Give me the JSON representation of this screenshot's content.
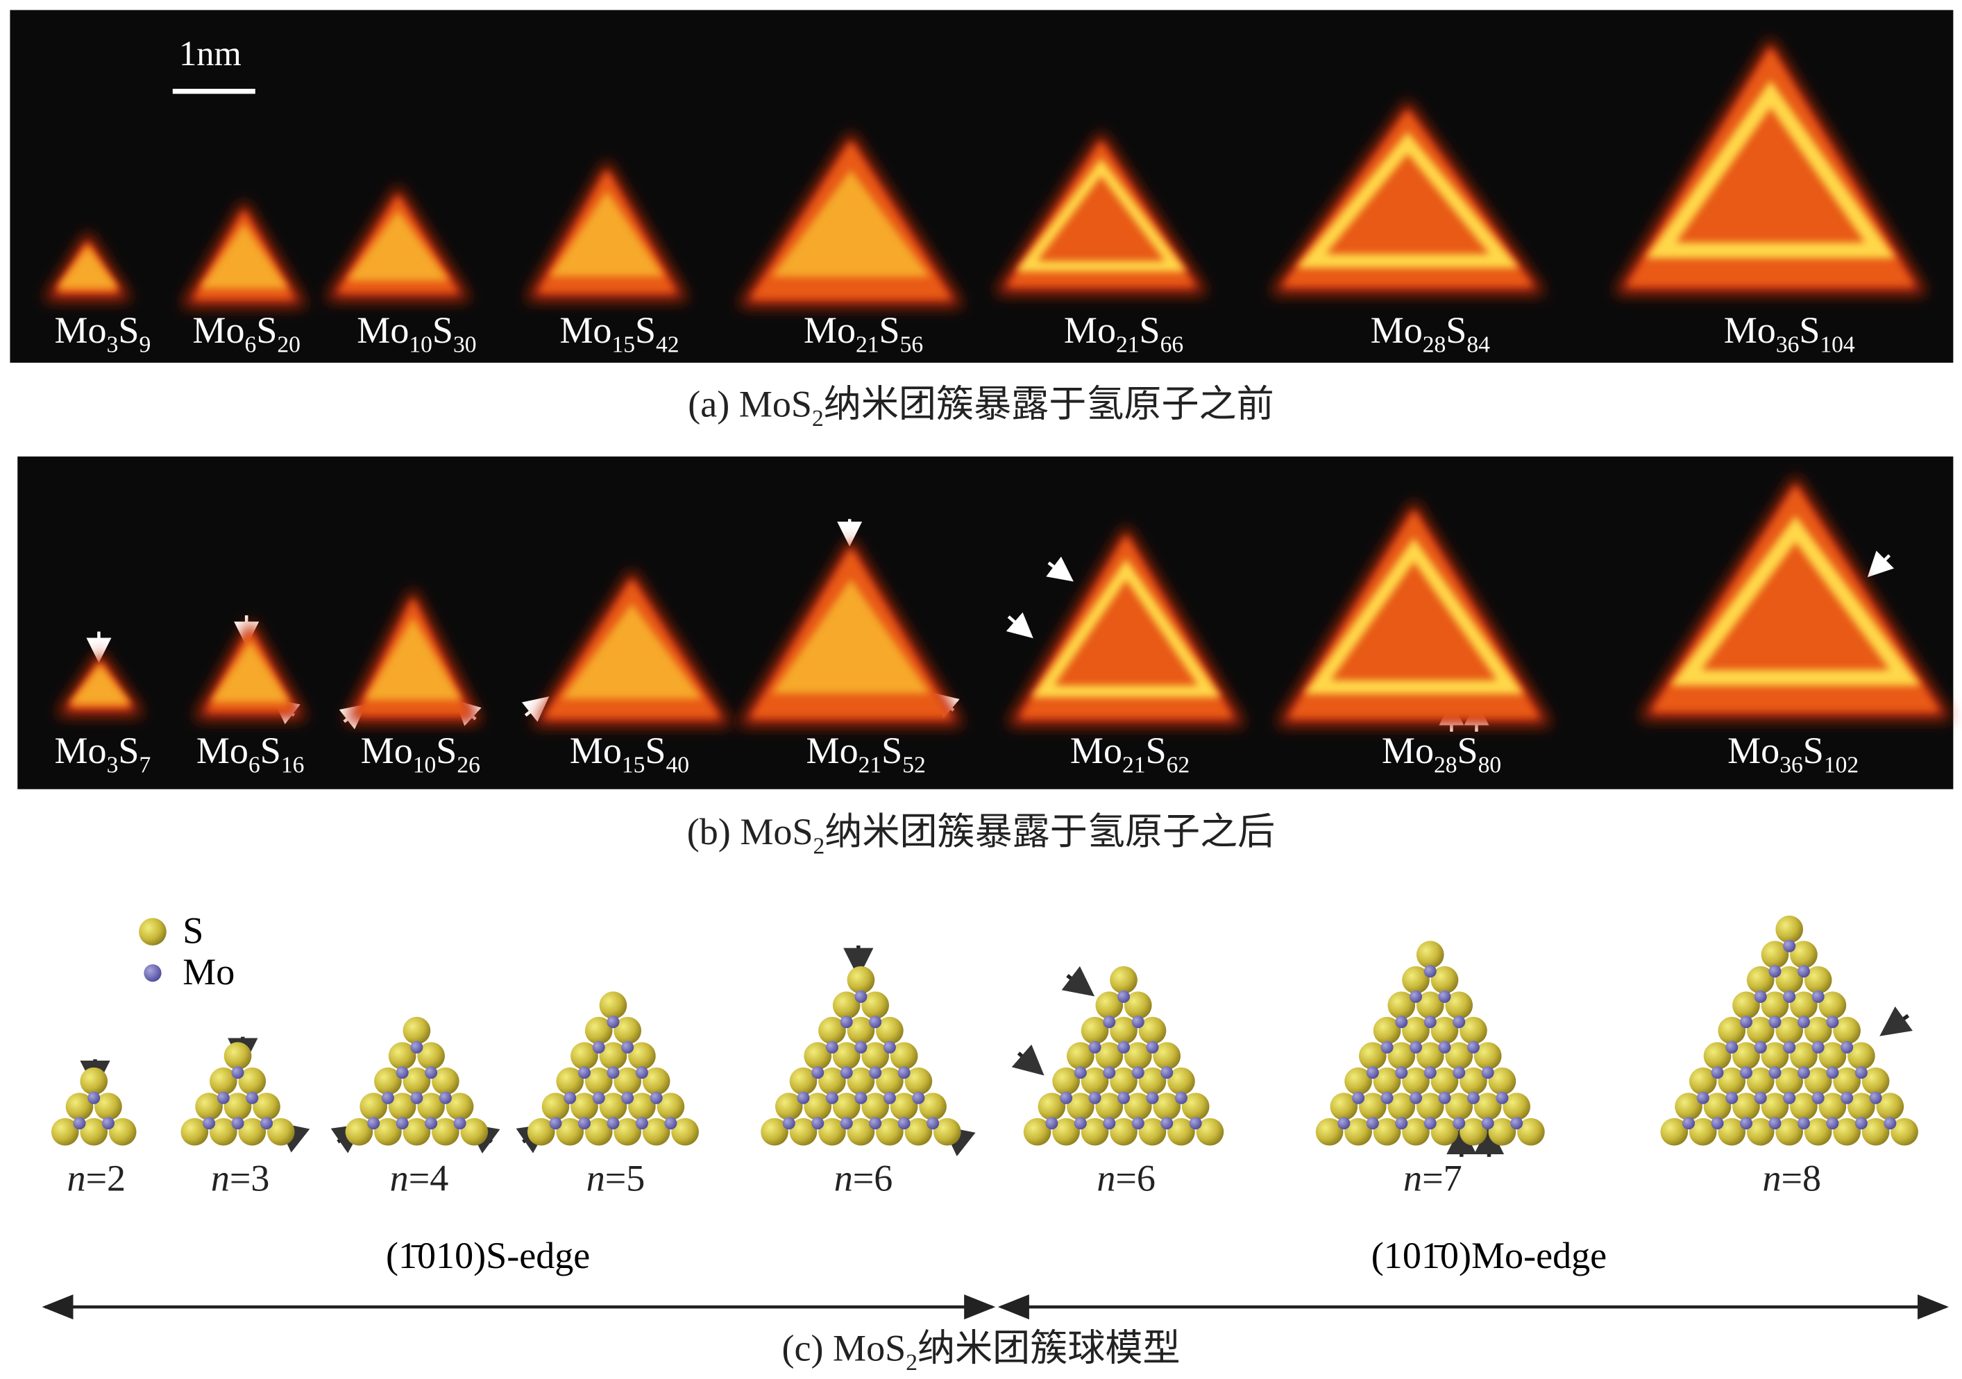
{
  "panel_a": {
    "scale_bar": "1nm",
    "clusters": [
      [
        "Mo",
        "3",
        "S",
        "9"
      ],
      [
        "Mo",
        "6",
        "S",
        "20"
      ],
      [
        "Mo",
        "10",
        "S",
        "30"
      ],
      [
        "Mo",
        "15",
        "S",
        "42"
      ],
      [
        "Mo",
        "21",
        "S",
        "56"
      ],
      [
        "Mo",
        "21",
        "S",
        "66"
      ],
      [
        "Mo",
        "28",
        "S",
        "84"
      ],
      [
        "Mo",
        "36",
        "S",
        "104"
      ]
    ],
    "caption": [
      "(a) MoS",
      "2",
      "纳米团簇暴露于氢原子之前"
    ]
  },
  "panel_b": {
    "clusters": [
      [
        "Mo",
        "3",
        "S",
        "7"
      ],
      [
        "Mo",
        "6",
        "S",
        "16"
      ],
      [
        "Mo",
        "10",
        "S",
        "26"
      ],
      [
        "Mo",
        "15",
        "S",
        "40"
      ],
      [
        "Mo",
        "21",
        "S",
        "52"
      ],
      [
        "Mo",
        "21",
        "S",
        "62"
      ],
      [
        "Mo",
        "28",
        "S",
        "80"
      ],
      [
        "Mo",
        "36",
        "S",
        "102"
      ]
    ],
    "caption": [
      "(b) MoS",
      "2",
      "纳米团簇暴露于氢原子之后"
    ]
  },
  "panel_c": {
    "legend": [
      "S",
      "Mo"
    ],
    "models": [
      [
        "n",
        "=2"
      ],
      [
        "n",
        "=3"
      ],
      [
        "n",
        "=4"
      ],
      [
        "n",
        "=5"
      ],
      [
        "n",
        "=6"
      ],
      [
        "n",
        "=6"
      ],
      [
        "n",
        "=7"
      ],
      [
        "n",
        "=8"
      ]
    ],
    "edges": [
      "(1̄010)S-edge",
      "(101̄0)Mo-edge"
    ],
    "caption": [
      "(c) MoS",
      "2",
      "纳米团簇球模型"
    ]
  }
}
